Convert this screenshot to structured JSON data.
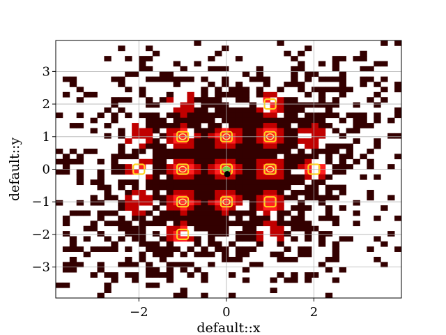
{
  "chart_data": {
    "type": "heatmap",
    "xlabel": "default::x",
    "ylabel": "default::y",
    "xlim": [
      -3.9,
      4.0
    ],
    "ylim": [
      -3.95,
      3.95
    ],
    "xticks": [
      -2,
      0,
      2
    ],
    "xtick_labels": [
      "−2",
      "0",
      "2"
    ],
    "yticks": [
      -3,
      -2,
      -1,
      0,
      1,
      2,
      3
    ],
    "ytick_labels": [
      "−3",
      "−2",
      "−1",
      "0",
      "1",
      "2",
      "3"
    ],
    "grid": true,
    "colormap": "hot",
    "colors": {
      "low": "#330000",
      "mid": "#c00000",
      "high": "#ff2020",
      "contour_outer": "#ffd21f",
      "contour_inner": "#ffee77",
      "contour_center": "#6bd23a",
      "marker": "#000000",
      "grid": "#b0b0b0"
    },
    "peaks": [
      {
        "x": -1,
        "y": 1,
        "level": 3
      },
      {
        "x": 0,
        "y": 1,
        "level": 3
      },
      {
        "x": 1,
        "y": 1,
        "level": 3
      },
      {
        "x": -1,
        "y": 0,
        "level": 3
      },
      {
        "x": 0,
        "y": 0,
        "level": 4
      },
      {
        "x": 1,
        "y": 0,
        "level": 3
      },
      {
        "x": -1,
        "y": -1,
        "level": 3
      },
      {
        "x": 0,
        "y": -1,
        "level": 3
      },
      {
        "x": 1,
        "y": -1,
        "level": 2
      },
      {
        "x": -2,
        "y": 0,
        "level": 2
      },
      {
        "x": 2,
        "y": 0,
        "level": 2
      },
      {
        "x": 1,
        "y": 2,
        "level": 2
      },
      {
        "x": -1,
        "y": -2,
        "level": 2
      },
      {
        "x": -1,
        "y": 2,
        "level": 1
      },
      {
        "x": -2,
        "y": 1,
        "level": 1
      },
      {
        "x": -2,
        "y": -1,
        "level": 1
      },
      {
        "x": 2,
        "y": 1,
        "level": 1
      },
      {
        "x": 1,
        "y": -2,
        "level": 1
      }
    ],
    "marker": {
      "x": 0.02,
      "y": -0.15
    }
  }
}
